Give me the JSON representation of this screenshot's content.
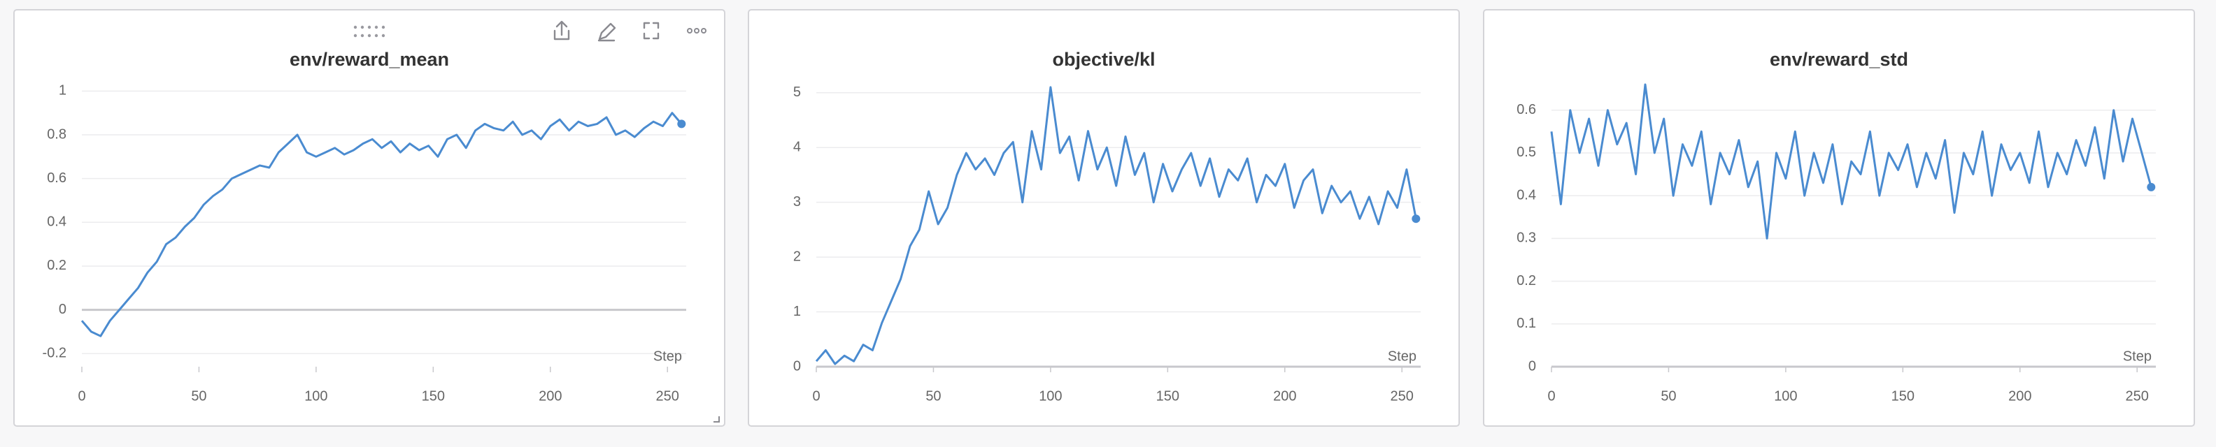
{
  "chart_data": [
    {
      "type": "line",
      "title": "env/reward_mean",
      "x_label": "Step",
      "x": [
        0,
        4,
        8,
        12,
        16,
        20,
        24,
        28,
        32,
        36,
        40,
        44,
        48,
        52,
        56,
        60,
        64,
        68,
        72,
        76,
        80,
        84,
        88,
        92,
        96,
        100,
        104,
        108,
        112,
        116,
        120,
        124,
        128,
        132,
        136,
        140,
        144,
        148,
        152,
        156,
        160,
        164,
        168,
        172,
        176,
        180,
        184,
        188,
        192,
        196,
        200,
        204,
        208,
        212,
        216,
        220,
        224,
        228,
        232,
        236,
        240,
        244,
        248,
        252,
        256
      ],
      "series": [
        {
          "color": "#4a8bd0",
          "values": [
            -0.05,
            -0.1,
            -0.12,
            -0.05,
            0,
            0.05,
            0.1,
            0.17,
            0.22,
            0.3,
            0.33,
            0.38,
            0.42,
            0.48,
            0.52,
            0.55,
            0.6,
            0.62,
            0.64,
            0.66,
            0.65,
            0.72,
            0.76,
            0.8,
            0.72,
            0.7,
            0.72,
            0.74,
            0.71,
            0.73,
            0.76,
            0.78,
            0.74,
            0.77,
            0.72,
            0.76,
            0.73,
            0.75,
            0.7,
            0.78,
            0.8,
            0.74,
            0.82,
            0.85,
            0.83,
            0.82,
            0.86,
            0.8,
            0.82,
            0.78,
            0.84,
            0.87,
            0.82,
            0.86,
            0.84,
            0.85,
            0.88,
            0.8,
            0.82,
            0.79,
            0.83,
            0.86,
            0.84,
            0.9,
            0.85
          ]
        }
      ],
      "xlim": [
        0,
        258
      ],
      "xticks": [
        0,
        50,
        100,
        150,
        200,
        250
      ],
      "ylim": [
        -0.26,
        1.03
      ],
      "yticks": [
        -0.2,
        0,
        0.2,
        0.4,
        0.6,
        0.8,
        1
      ],
      "grid": true
    },
    {
      "type": "line",
      "title": "objective/kl",
      "x_label": "Step",
      "x": [
        0,
        4,
        8,
        12,
        16,
        20,
        24,
        28,
        32,
        36,
        40,
        44,
        48,
        52,
        56,
        60,
        64,
        68,
        72,
        76,
        80,
        84,
        88,
        92,
        96,
        100,
        104,
        108,
        112,
        116,
        120,
        124,
        128,
        132,
        136,
        140,
        144,
        148,
        152,
        156,
        160,
        164,
        168,
        172,
        176,
        180,
        184,
        188,
        192,
        196,
        200,
        204,
        208,
        212,
        216,
        220,
        224,
        228,
        232,
        236,
        240,
        244,
        248,
        252,
        256
      ],
      "series": [
        {
          "color": "#4a8bd0",
          "values": [
            0.1,
            0.3,
            0.05,
            0.2,
            0.1,
            0.4,
            0.3,
            0.8,
            1.2,
            1.6,
            2.2,
            2.5,
            3.2,
            2.6,
            2.9,
            3.5,
            3.9,
            3.6,
            3.8,
            3.5,
            3.9,
            4.1,
            3.0,
            4.3,
            3.6,
            5.1,
            3.9,
            4.2,
            3.4,
            4.3,
            3.6,
            4.0,
            3.3,
            4.2,
            3.5,
            3.9,
            3.0,
            3.7,
            3.2,
            3.6,
            3.9,
            3.3,
            3.8,
            3.1,
            3.6,
            3.4,
            3.8,
            3.0,
            3.5,
            3.3,
            3.7,
            2.9,
            3.4,
            3.6,
            2.8,
            3.3,
            3.0,
            3.2,
            2.7,
            3.1,
            2.6,
            3.2,
            2.9,
            3.6,
            2.7
          ]
        }
      ],
      "xlim": [
        0,
        258
      ],
      "xticks": [
        0,
        50,
        100,
        150,
        200,
        250
      ],
      "ylim": [
        0,
        5.15
      ],
      "yticks": [
        0,
        1,
        2,
        3,
        4,
        5
      ],
      "grid": true
    },
    {
      "type": "line",
      "title": "env/reward_std",
      "x_label": "Step",
      "x": [
        0,
        4,
        8,
        12,
        16,
        20,
        24,
        28,
        32,
        36,
        40,
        44,
        48,
        52,
        56,
        60,
        64,
        68,
        72,
        76,
        80,
        84,
        88,
        92,
        96,
        100,
        104,
        108,
        112,
        116,
        120,
        124,
        128,
        132,
        136,
        140,
        144,
        148,
        152,
        156,
        160,
        164,
        168,
        172,
        176,
        180,
        184,
        188,
        192,
        196,
        200,
        204,
        208,
        212,
        216,
        220,
        224,
        228,
        232,
        236,
        240,
        244,
        248,
        252,
        256
      ],
      "series": [
        {
          "color": "#4a8bd0",
          "values": [
            0.55,
            0.38,
            0.6,
            0.5,
            0.58,
            0.47,
            0.6,
            0.52,
            0.57,
            0.45,
            0.66,
            0.5,
            0.58,
            0.4,
            0.52,
            0.47,
            0.55,
            0.38,
            0.5,
            0.45,
            0.53,
            0.42,
            0.48,
            0.3,
            0.5,
            0.44,
            0.55,
            0.4,
            0.5,
            0.43,
            0.52,
            0.38,
            0.48,
            0.45,
            0.55,
            0.4,
            0.5,
            0.46,
            0.52,
            0.42,
            0.5,
            0.44,
            0.53,
            0.36,
            0.5,
            0.45,
            0.55,
            0.4,
            0.52,
            0.46,
            0.5,
            0.43,
            0.55,
            0.42,
            0.5,
            0.45,
            0.53,
            0.47,
            0.56,
            0.44,
            0.6,
            0.48,
            0.58,
            0.5,
            0.42
          ]
        }
      ],
      "xlim": [
        0,
        258
      ],
      "xticks": [
        0,
        50,
        100,
        150,
        200,
        250
      ],
      "ylim": [
        0,
        0.66
      ],
      "yticks": [
        0,
        0.1,
        0.2,
        0.3,
        0.4,
        0.5,
        0.6
      ],
      "grid": true
    }
  ]
}
